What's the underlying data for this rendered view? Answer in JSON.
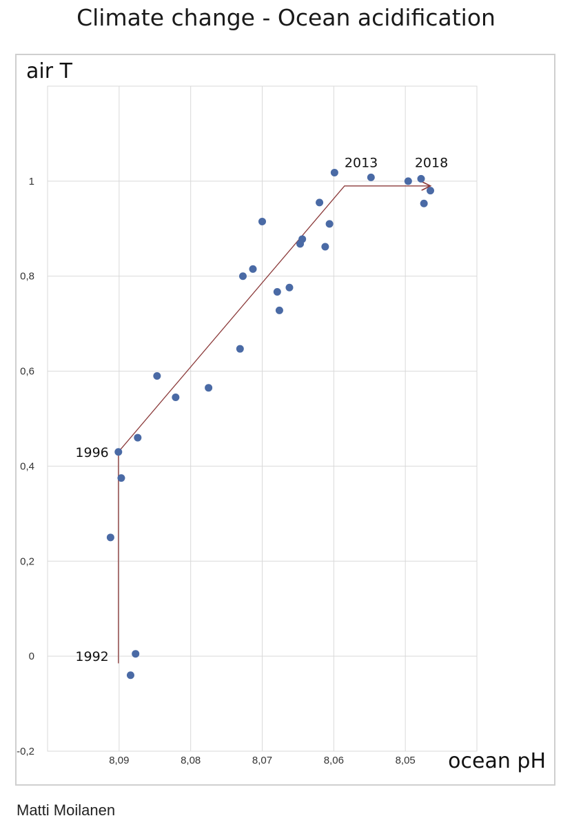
{
  "title": "Climate change - Ocean acidification",
  "author": "Matti Moilanen",
  "chart_data": {
    "type": "scatter",
    "title": "Climate change - Ocean acidification",
    "xlabel": "ocean pH",
    "ylabel": "air T",
    "x_reversed": true,
    "xlim": [
      8.1,
      8.04
    ],
    "ylim": [
      -0.2,
      1.2
    ],
    "grid": true,
    "x_ticks": [
      {
        "value": 8.09,
        "label": "8,09"
      },
      {
        "value": 8.08,
        "label": "8,08"
      },
      {
        "value": 8.07,
        "label": "8,07"
      },
      {
        "value": 8.06,
        "label": "8,06"
      },
      {
        "value": 8.05,
        "label": "8,05"
      }
    ],
    "y_ticks": [
      {
        "value": -0.2,
        "label": "-0,2"
      },
      {
        "value": 0,
        "label": "0"
      },
      {
        "value": 0.2,
        "label": "0,2"
      },
      {
        "value": 0.4,
        "label": "0,4"
      },
      {
        "value": 0.6,
        "label": "0,6"
      },
      {
        "value": 0.8,
        "label": "0,8"
      },
      {
        "value": 1,
        "label": "1"
      }
    ],
    "points": [
      {
        "x": 8.0912,
        "y": 0.25
      },
      {
        "x": 8.0884,
        "y": -0.04
      },
      {
        "x": 8.0877,
        "y": 0.005
      },
      {
        "x": 8.0897,
        "y": 0.375
      },
      {
        "x": 8.0901,
        "y": 0.43
      },
      {
        "x": 8.0874,
        "y": 0.46
      },
      {
        "x": 8.0847,
        "y": 0.59
      },
      {
        "x": 8.0821,
        "y": 0.545
      },
      {
        "x": 8.0775,
        "y": 0.565
      },
      {
        "x": 8.0731,
        "y": 0.647
      },
      {
        "x": 8.0727,
        "y": 0.8
      },
      {
        "x": 8.0713,
        "y": 0.815
      },
      {
        "x": 8.07,
        "y": 0.915
      },
      {
        "x": 8.0679,
        "y": 0.767
      },
      {
        "x": 8.0676,
        "y": 0.728
      },
      {
        "x": 8.0662,
        "y": 0.776
      },
      {
        "x": 8.0647,
        "y": 0.868
      },
      {
        "x": 8.0644,
        "y": 0.878
      },
      {
        "x": 8.062,
        "y": 0.955
      },
      {
        "x": 8.0612,
        "y": 0.862
      },
      {
        "x": 8.0606,
        "y": 0.91
      },
      {
        "x": 8.0599,
        "y": 1.018
      },
      {
        "x": 8.0548,
        "y": 1.008
      },
      {
        "x": 8.0496,
        "y": 1.0
      },
      {
        "x": 8.0478,
        "y": 1.005
      },
      {
        "x": 8.0474,
        "y": 0.953
      },
      {
        "x": 8.0465,
        "y": 0.98
      }
    ],
    "trend_line": [
      {
        "x": 8.0901,
        "y": -0.015
      },
      {
        "x": 8.0901,
        "y": 0.43
      },
      {
        "x": 8.0585,
        "y": 0.99
      },
      {
        "x": 8.0465,
        "y": 0.99
      }
    ],
    "annotations": [
      {
        "text": "1992",
        "x": 8.0901,
        "y": 0.0
      },
      {
        "text": "1996",
        "x": 8.0901,
        "y": 0.43
      },
      {
        "text": "2013",
        "x": 8.0585,
        "y": 1.035
      },
      {
        "text": "2018",
        "x": 8.0483,
        "y": 1.035
      }
    ],
    "colors": {
      "points": "#4a6aa5",
      "trend": "#8b3a3a",
      "grid": "#d9d9d9"
    }
  }
}
